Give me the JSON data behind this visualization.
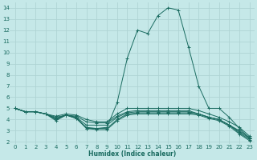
{
  "xlabel": "Humidex (Indice chaleur)",
  "bg_color": "#c5e8e8",
  "grid_color": "#afd4d4",
  "line_color": "#1a6b60",
  "xlim": [
    -0.5,
    23.5
  ],
  "ylim": [
    1.8,
    14.5
  ],
  "yticks": [
    2,
    3,
    4,
    5,
    6,
    7,
    8,
    9,
    10,
    11,
    12,
    13,
    14
  ],
  "xticks": [
    0,
    1,
    2,
    3,
    4,
    5,
    6,
    7,
    8,
    9,
    10,
    11,
    12,
    13,
    14,
    15,
    16,
    17,
    18,
    19,
    20,
    21,
    22,
    23
  ],
  "lines": [
    {
      "x": [
        0,
        1,
        2,
        3,
        4,
        5,
        6,
        7,
        8,
        9,
        10,
        11,
        12,
        13,
        14,
        15,
        16,
        17,
        18,
        19,
        20,
        21,
        22,
        23
      ],
      "y": [
        5.0,
        4.7,
        4.7,
        4.5,
        4.1,
        4.4,
        4.2,
        3.2,
        3.2,
        3.3,
        5.5,
        9.5,
        12.0,
        11.7,
        13.3,
        14.0,
        13.8,
        10.5,
        7.0,
        5.0,
        5.0,
        4.2,
        3.2,
        2.3
      ]
    },
    {
      "x": [
        0,
        1,
        2,
        3,
        4,
        5,
        6,
        7,
        8,
        9,
        10,
        11,
        12,
        13,
        14,
        15,
        16,
        17,
        18,
        19,
        20,
        21,
        22,
        23
      ],
      "y": [
        5.0,
        4.7,
        4.7,
        4.5,
        4.3,
        4.5,
        4.4,
        4.0,
        3.8,
        3.8,
        4.5,
        5.0,
        5.0,
        5.0,
        5.0,
        5.0,
        5.0,
        5.0,
        4.8,
        4.5,
        4.2,
        3.8,
        3.3,
        2.5
      ]
    },
    {
      "x": [
        0,
        1,
        2,
        3,
        4,
        5,
        6,
        7,
        8,
        9,
        10,
        11,
        12,
        13,
        14,
        15,
        16,
        17,
        18,
        19,
        20,
        21,
        22,
        23
      ],
      "y": [
        5.0,
        4.7,
        4.7,
        4.5,
        4.2,
        4.4,
        4.3,
        3.8,
        3.7,
        3.7,
        4.3,
        4.7,
        4.8,
        4.8,
        4.8,
        4.8,
        4.8,
        4.8,
        4.5,
        4.2,
        4.0,
        3.5,
        3.0,
        2.4
      ]
    },
    {
      "x": [
        0,
        1,
        2,
        3,
        4,
        5,
        6,
        7,
        8,
        9,
        10,
        11,
        12,
        13,
        14,
        15,
        16,
        17,
        18,
        19,
        20,
        21,
        22,
        23
      ],
      "y": [
        5.0,
        4.7,
        4.7,
        4.5,
        4.1,
        4.4,
        4.2,
        3.5,
        3.5,
        3.5,
        4.2,
        4.6,
        4.7,
        4.7,
        4.7,
        4.7,
        4.7,
        4.7,
        4.5,
        4.2,
        4.0,
        3.5,
        2.9,
        2.3
      ]
    },
    {
      "x": [
        0,
        1,
        2,
        3,
        4,
        5,
        6,
        7,
        8,
        9,
        10,
        11,
        12,
        13,
        14,
        15,
        16,
        17,
        18,
        19,
        20,
        21,
        22,
        23
      ],
      "y": [
        5.0,
        4.7,
        4.7,
        4.5,
        4.0,
        4.4,
        4.1,
        3.3,
        3.2,
        3.2,
        4.0,
        4.5,
        4.6,
        4.6,
        4.6,
        4.6,
        4.6,
        4.6,
        4.5,
        4.2,
        4.0,
        3.5,
        2.8,
        2.2
      ]
    },
    {
      "x": [
        0,
        1,
        2,
        3,
        4,
        5,
        6,
        7,
        8,
        9,
        10,
        11,
        12,
        13,
        14,
        15,
        16,
        17,
        18,
        19,
        20,
        21,
        22,
        23
      ],
      "y": [
        5.0,
        4.7,
        4.7,
        4.5,
        3.9,
        4.4,
        4.1,
        3.2,
        3.1,
        3.1,
        3.9,
        4.4,
        4.5,
        4.5,
        4.5,
        4.5,
        4.5,
        4.5,
        4.4,
        4.1,
        3.9,
        3.4,
        2.7,
        2.1
      ]
    }
  ],
  "tick_fontsize": 5.0,
  "xlabel_fontsize": 5.5,
  "xlabel_fontweight": "bold"
}
